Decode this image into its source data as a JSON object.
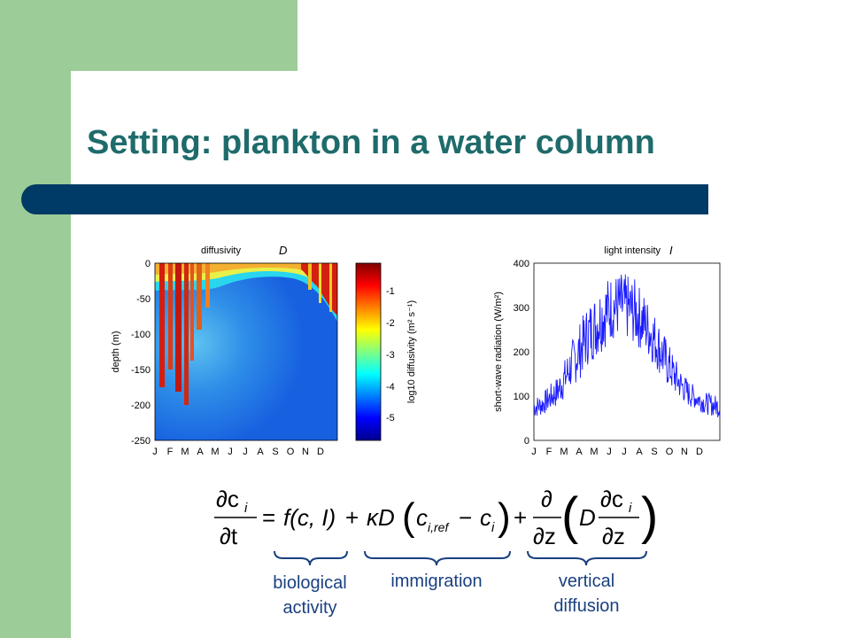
{
  "slide": {
    "title": "Setting: plankton in a water column"
  },
  "equation": {
    "lhs_num": "∂c",
    "lhs_sub": "i",
    "lhs_den": "∂t",
    "equals": "=",
    "bio_term": "f(c, I)",
    "plus1": "+",
    "kappa_d": "κD",
    "c_ref": "c",
    "c_ref_sub": "i,ref",
    "minus": "−",
    "c_i": "c",
    "c_i_sub": "i",
    "plus2": "+",
    "partial": "∂",
    "dz": "∂z",
    "d_inner": "D",
    "inner_num": "∂c",
    "inner_sub": "i",
    "inner_den": "∂z"
  },
  "labels": {
    "biological_1": "biological",
    "biological_2": "activity",
    "immigration": "immigration",
    "vertical_1": "vertical",
    "vertical_2": "diffusion"
  },
  "colors": {
    "accent_green": "#9ccc97",
    "title_teal": "#1f6b6b",
    "rule_navy": "#003a66",
    "label_blue": "#1a4080",
    "series_blue": "#1a1aff"
  },
  "chart_data": [
    {
      "type": "heatmap",
      "title": "diffusivity",
      "title_symbol": "D",
      "xlabel": "",
      "ylabel": "depth (m)",
      "x_ticks": [
        "J",
        "F",
        "M",
        "A",
        "M",
        "J",
        "J",
        "A",
        "S",
        "O",
        "N",
        "D"
      ],
      "y_ticks": [
        "0",
        "-50",
        "-100",
        "-150",
        "-200",
        "-250"
      ],
      "ylim": [
        -250,
        0
      ],
      "colorbar": {
        "label": "log10 diffusivity (m² s⁻¹)",
        "ticks": [
          "-1",
          "-2",
          "-3",
          "-4",
          "-5"
        ],
        "range": [
          -5.8,
          -0.2
        ],
        "colormap": "jet"
      },
      "grid": false
    },
    {
      "type": "line",
      "title": "light intensity",
      "title_symbol": "I",
      "xlabel": "",
      "ylabel": "short-wave radiation (W/m²)",
      "x_ticks": [
        "J",
        "F",
        "M",
        "A",
        "M",
        "J",
        "J",
        "A",
        "S",
        "O",
        "N",
        "D"
      ],
      "y_ticks": [
        "0",
        "100",
        "200",
        "300",
        "400"
      ],
      "ylim": [
        0,
        400
      ],
      "series": [
        {
          "color": "#1a1aff",
          "x": [
            0,
            15,
            30,
            45,
            60,
            75,
            90,
            105,
            120,
            135,
            150,
            165,
            180,
            195,
            210,
            225,
            240,
            255,
            270,
            285,
            300,
            315,
            330,
            345,
            360
          ],
          "values": [
            75,
            80,
            95,
            110,
            140,
            175,
            205,
            240,
            260,
            285,
            300,
            305,
            300,
            290,
            270,
            245,
            215,
            180,
            150,
            125,
            105,
            95,
            85,
            80,
            75
          ],
          "amplitude": [
            25,
            25,
            30,
            35,
            45,
            55,
            65,
            70,
            75,
            80,
            75,
            75,
            75,
            75,
            70,
            65,
            60,
            55,
            45,
            35,
            30,
            25,
            25,
            25,
            25
          ]
        }
      ],
      "grid": false
    }
  ]
}
